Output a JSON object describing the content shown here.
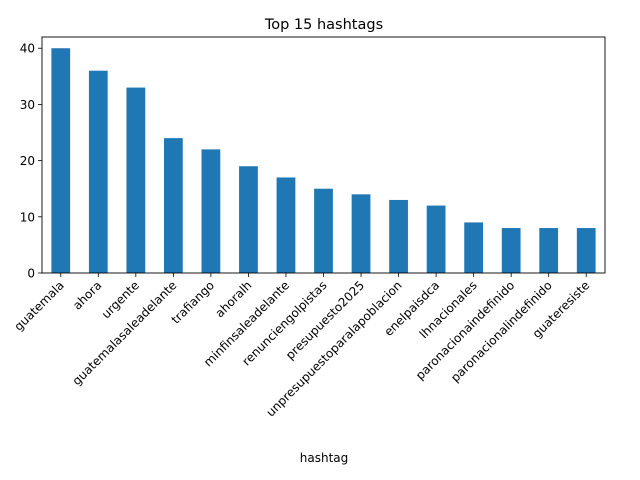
{
  "chart_data": {
    "type": "bar",
    "title": "Top 15 hashtags",
    "xlabel": "hashtag",
    "ylabel": "",
    "ylim": [
      0,
      42
    ],
    "yticks": [
      0,
      10,
      20,
      30,
      40
    ],
    "bar_color": "#1f77b4",
    "grid": false,
    "legend": "none",
    "categories": [
      "guatemala",
      "ahora",
      "urgente",
      "guatemalasaleadelante",
      "trafiango",
      "ahoralh",
      "minfinsaleadelante",
      "renunciengolpistas",
      "presupuesto2025",
      "unpresupuestoparalapoblacion",
      "enelpaisdca",
      "lhnacionales",
      "paronacionaindefinido",
      "paronacionalindefinido",
      "guateresiste"
    ],
    "values": [
      40,
      36,
      33,
      24,
      22,
      19,
      17,
      15,
      14,
      13,
      12,
      9,
      8,
      8,
      8
    ]
  }
}
